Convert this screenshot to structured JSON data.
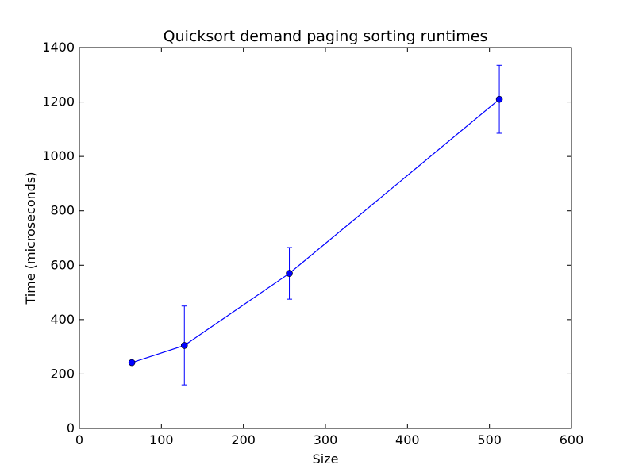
{
  "chart_data": {
    "type": "line",
    "title": "Quicksort demand paging sorting runtimes",
    "xlabel": "Size",
    "ylabel": "Time (microseconds)",
    "xlim": [
      0,
      600
    ],
    "ylim": [
      0,
      1400
    ],
    "xticks": [
      "0",
      "100",
      "200",
      "300",
      "400",
      "500",
      "600"
    ],
    "yticks": [
      "0",
      "200",
      "400",
      "600",
      "800",
      "1000",
      "1200",
      "1400"
    ],
    "grid": false,
    "legend": "none",
    "series": [
      {
        "color": "#0000ff",
        "x": [
          64,
          128,
          256,
          512
        ],
        "y": [
          242,
          305,
          570,
          1210
        ],
        "yerr": [
          3,
          145,
          95,
          125
        ]
      }
    ]
  }
}
